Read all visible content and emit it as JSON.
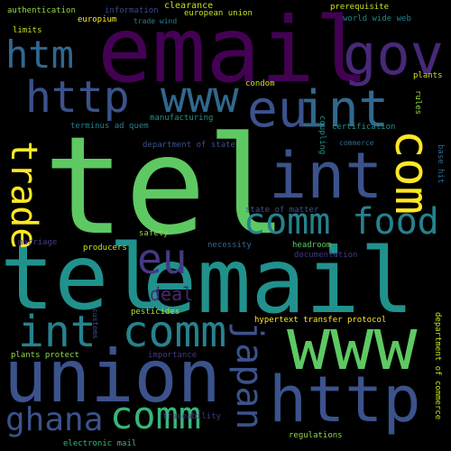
{
  "words": {
    "tel_large": {
      "text": "tel",
      "color": "#5ec962"
    },
    "email_top": {
      "text": "email",
      "color": "#440154"
    },
    "tel_mid": {
      "text": "tel",
      "color": "#21918c"
    },
    "email_mid": {
      "text": "email",
      "color": "#21918c"
    },
    "www_right": {
      "text": "www",
      "color": "#5ec962"
    },
    "union": {
      "text": "union",
      "color": "#3b528b"
    },
    "http_bottom": {
      "text": "http",
      "color": "#3b528b"
    },
    "gov": {
      "text": "gov",
      "color": "#482878"
    },
    "int_right": {
      "text": "int",
      "color": "#3b528b"
    },
    "int_top": {
      "text": "int",
      "color": "#31688e"
    },
    "eu_top": {
      "text": "eu",
      "color": "#3b528b"
    },
    "http_top": {
      "text": "http",
      "color": "#3b528b"
    },
    "www_top": {
      "text": "www",
      "color": "#31688e"
    },
    "htm": {
      "text": "htm",
      "color": "#31688e"
    },
    "com_right": {
      "text": "com",
      "color": "#fde725"
    },
    "trade": {
      "text": "trade",
      "color": "#fde725"
    },
    "comm_food": {
      "text": "comm food",
      "color": "#26828e"
    },
    "eu_mid": {
      "text": "eu",
      "color": "#443983"
    },
    "int_comm": {
      "text": "int comm",
      "color": "#26828e"
    },
    "japan": {
      "text": "japan",
      "color": "#3b528b"
    },
    "ghana": {
      "text": "ghana",
      "color": "#3b528b"
    },
    "comm_bottom": {
      "text": "comm",
      "color": "#35b779"
    },
    "deal": {
      "text": "deal",
      "color": "#482878"
    },
    "authentication": {
      "text": "authentication",
      "color": "#90d743"
    },
    "information": {
      "text": "information",
      "color": "#3e4989"
    },
    "clearance": {
      "text": "clearance",
      "color": "#c8e020"
    },
    "prerequisite": {
      "text": "prerequisite",
      "color": "#c8e020"
    },
    "european_union": {
      "text": "european union",
      "color": "#c8e020"
    },
    "europium": {
      "text": "europium",
      "color": "#fde725"
    },
    "trade_wind": {
      "text": "trade wind",
      "color": "#26828e"
    },
    "world_wide_web": {
      "text": "world wide web",
      "color": "#26828e"
    },
    "limits": {
      "text": "limits",
      "color": "#c8e020"
    },
    "plants": {
      "text": "plants",
      "color": "#c8e020"
    },
    "condom": {
      "text": "condom",
      "color": "#c8e020"
    },
    "rules": {
      "text": "rules",
      "color": "#90d743"
    },
    "manufacturing": {
      "text": "manufacturing",
      "color": "#21918c"
    },
    "terminus_ad_quem": {
      "text": "terminus ad quem",
      "color": "#26828e"
    },
    "certification": {
      "text": "certification",
      "color": "#21918c"
    },
    "department_of_state": {
      "text": "department of state",
      "color": "#3b528b"
    },
    "coupling": {
      "text": "coupling",
      "color": "#21918c"
    },
    "commerce": {
      "text": "commerce",
      "color": "#31688e"
    },
    "base_hit": {
      "text": "base hit",
      "color": "#31688e"
    },
    "state_of_matter": {
      "text": "state of matter",
      "color": "#3b528b"
    },
    "safety": {
      "text": "safety",
      "color": "#90d743"
    },
    "marriage": {
      "text": "marriage",
      "color": "#443983"
    },
    "producers": {
      "text": "producers",
      "color": "#c8e020"
    },
    "necessity": {
      "text": "necessity",
      "color": "#31688e"
    },
    "headroom": {
      "text": "headroom",
      "color": "#5ec962"
    },
    "documentation": {
      "text": "documentation",
      "color": "#443983"
    },
    "pesticides": {
      "text": "pesticides",
      "color": "#b5de2b"
    },
    "customs": {
      "text": "customs",
      "color": "#3b528b"
    },
    "hypertext_transfer_protocol": {
      "text": "hypertext transfer protocol",
      "color": "#fde725"
    },
    "department_of_commerce": {
      "text": "department of commerce",
      "color": "#c8e020"
    },
    "plants_protect": {
      "text": "plants protect",
      "color": "#90d743"
    },
    "importance": {
      "text": "importance",
      "color": "#443983"
    },
    "electronic_mail": {
      "text": "electronic mail",
      "color": "#35b779"
    },
    "traceability": {
      "text": "traceability",
      "color": "#443983"
    },
    "regulations": {
      "text": "regulations",
      "color": "#90d743"
    }
  }
}
